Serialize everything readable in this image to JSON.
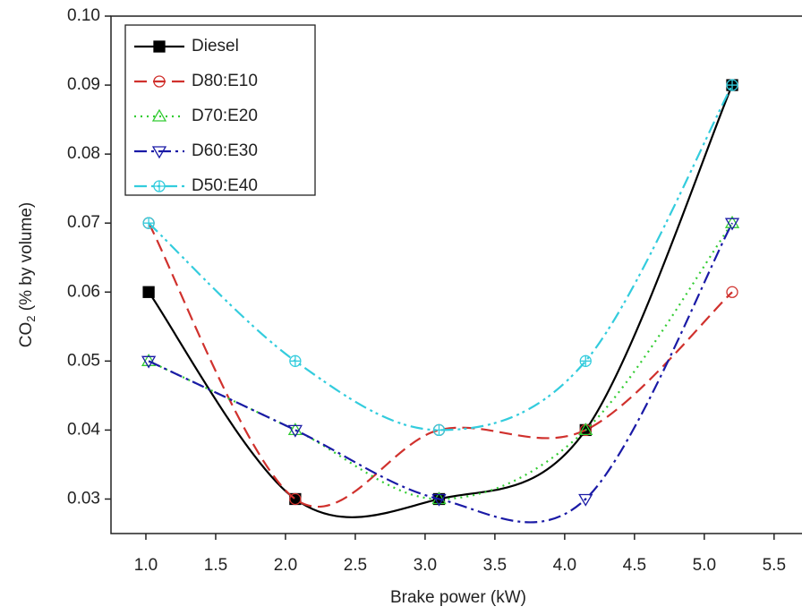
{
  "chart_data": {
    "type": "line",
    "x_label": "Brake power (kW)",
    "y_label": {
      "main": "CO",
      "sub": "2",
      "rest": " (% by volume)"
    },
    "x": [
      1.02,
      2.07,
      3.1,
      4.15,
      5.2
    ],
    "xlim": [
      0.75,
      5.7
    ],
    "ylim": [
      0.025,
      0.1
    ],
    "xticks": [
      {
        "value": 1,
        "label": "1.0"
      },
      1.5,
      {
        "value": 2,
        "label": "2.0"
      },
      2.5,
      {
        "value": 3,
        "label": "3.0"
      },
      3.5,
      {
        "value": 4,
        "label": "4.0"
      },
      4.5,
      {
        "value": 5,
        "label": "5.0"
      },
      5.5
    ],
    "yticks": [
      0.03,
      0.04,
      0.05,
      0.06,
      0.07,
      0.08,
      0.09,
      {
        "value": 0.1,
        "label": "0.10"
      }
    ],
    "legend": "upper left",
    "series": [
      {
        "name": "Diesel",
        "color": "#000000",
        "marker": "square",
        "dash": "solid",
        "values": [
          0.06,
          0.03,
          0.03,
          0.04,
          0.09
        ]
      },
      {
        "name": "D80:E10",
        "color": "#d0312d",
        "marker": "circle",
        "dash": "dash",
        "values": [
          0.07,
          0.03,
          0.04,
          0.04,
          0.06
        ]
      },
      {
        "name": "D70:E20",
        "color": "#33cc33",
        "marker": "triangle-up",
        "dash": "dot",
        "values": [
          0.05,
          0.04,
          0.03,
          0.04,
          0.07
        ]
      },
      {
        "name": "D60:E30",
        "color": "#1a1aa6",
        "marker": "triangle-down",
        "dash": "dashdot",
        "values": [
          0.05,
          0.04,
          0.03,
          0.03,
          0.07
        ]
      },
      {
        "name": "D50:E40",
        "color": "#33ccdd",
        "marker": "crosscircle",
        "dash": "dashdotdot",
        "values": [
          0.07,
          0.05,
          0.04,
          0.05,
          0.09
        ]
      }
    ]
  }
}
